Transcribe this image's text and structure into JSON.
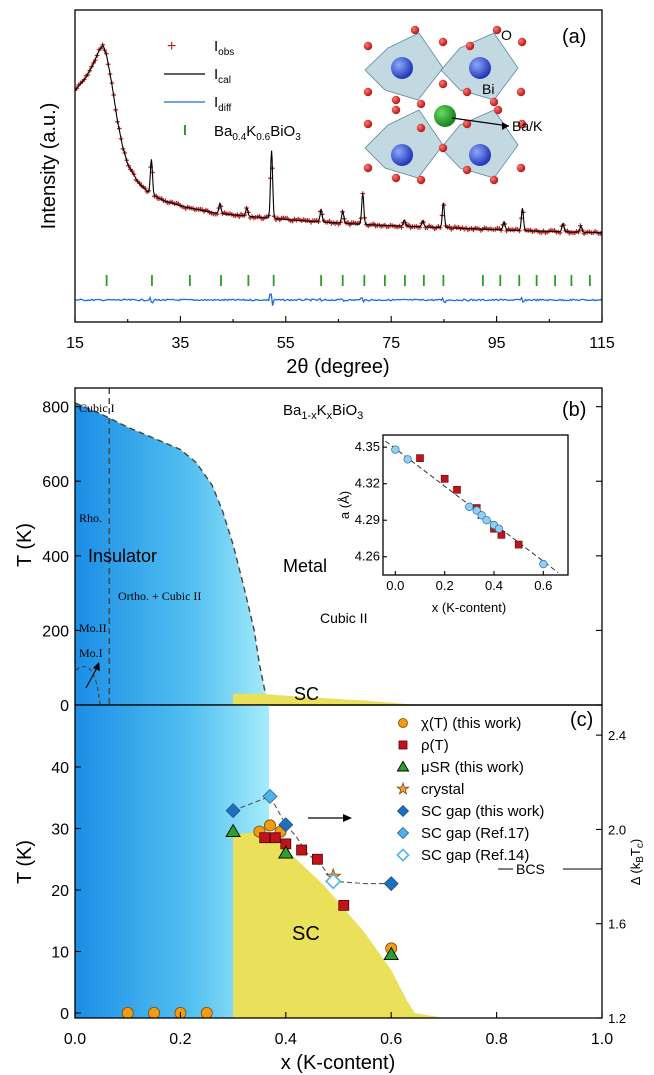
{
  "chart_data": [
    {
      "id": "a",
      "type": "scatter",
      "panel_label": "(a)",
      "xlabel": "2θ (degree)",
      "ylabel": "Intensity (a.u.)",
      "xlim": [
        15,
        115
      ],
      "x_ticks": [
        "15",
        "35",
        "55",
        "75",
        "95",
        "115"
      ],
      "legend": [
        "Iobs",
        "Ical",
        "Idiff",
        "Ba0.4K0.6BiO3"
      ],
      "legend_parts": [
        {
          "main": "I",
          "sub": "obs",
          "tail": ""
        },
        {
          "main": "I",
          "sub": "cal",
          "tail": ""
        },
        {
          "main": "I",
          "sub": "diff",
          "tail": ""
        },
        {
          "main": "Ba",
          "sub": "0.4",
          "mid": "K",
          "sub2": "0.6",
          "tail": "BiO",
          "sub3": "3"
        }
      ],
      "colors": {
        "obs": "#b22222",
        "cal": "#000000",
        "diff": "#1f6fd6",
        "bragg": "#2a9d2a"
      },
      "intensity_profile": [
        [
          15,
          0.74
        ],
        [
          17,
          0.8
        ],
        [
          18.5,
          0.87
        ],
        [
          19.5,
          0.93
        ],
        [
          20.3,
          0.96
        ],
        [
          21,
          0.91
        ],
        [
          22,
          0.77
        ],
        [
          23,
          0.6
        ],
        [
          24,
          0.47
        ],
        [
          25,
          0.38
        ],
        [
          27,
          0.29
        ],
        [
          29,
          0.24
        ],
        [
          32,
          0.2
        ],
        [
          36,
          0.17
        ],
        [
          42,
          0.14
        ],
        [
          50,
          0.12
        ],
        [
          60,
          0.1
        ],
        [
          70,
          0.085
        ],
        [
          80,
          0.075
        ],
        [
          90,
          0.065
        ],
        [
          100,
          0.055
        ],
        [
          115,
          0.045
        ]
      ],
      "peaks": [
        [
          29.5,
          0.17
        ],
        [
          42.5,
          0.05
        ],
        [
          47.6,
          0.04
        ],
        [
          52.3,
          0.33
        ],
        [
          61.7,
          0.06
        ],
        [
          65.8,
          0.06
        ],
        [
          69.6,
          0.15
        ],
        [
          77.5,
          0.03
        ],
        [
          81.0,
          0.03
        ],
        [
          84.9,
          0.12
        ],
        [
          96.4,
          0.04
        ],
        [
          99.9,
          0.11
        ],
        [
          107.6,
          0.04
        ],
        [
          111.0,
          0.03
        ]
      ],
      "bragg_positions": [
        21.0,
        29.6,
        36.8,
        42.7,
        47.9,
        52.7,
        61.7,
        65.8,
        69.9,
        73.8,
        77.6,
        81.2,
        84.9,
        92.4,
        95.7,
        99.3,
        102.6,
        106.1,
        109.2,
        112.7
      ],
      "inset_labels": {
        "O": "O",
        "Bi": "Bi",
        "A": "Ba/K"
      }
    },
    {
      "id": "b",
      "type": "area",
      "panel_label": "(b)",
      "title": "Ba1-xKxBiO3",
      "title_parts": {
        "a": "Ba",
        "b": "1-x",
        "c": "K",
        "d": "x",
        "e": "BiO",
        "f": "3"
      },
      "ylabel": "T (K)",
      "ylim": [
        0,
        850
      ],
      "y_ticks": [
        "0",
        "200",
        "400",
        "600",
        "800"
      ],
      "phase_boundary": [
        [
          0,
          810
        ],
        [
          0.05,
          780
        ],
        [
          0.1,
          745
        ],
        [
          0.15,
          715
        ],
        [
          0.2,
          685
        ],
        [
          0.23,
          650
        ],
        [
          0.26,
          590
        ],
        [
          0.28,
          520
        ],
        [
          0.3,
          430
        ],
        [
          0.32,
          320
        ],
        [
          0.34,
          200
        ],
        [
          0.35,
          110
        ],
        [
          0.36,
          40
        ],
        [
          0.37,
          0
        ]
      ],
      "sc_dome": [
        [
          0.3,
          30
        ],
        [
          0.35,
          30
        ],
        [
          0.45,
          20
        ],
        [
          0.55,
          12
        ],
        [
          0.65,
          0
        ]
      ],
      "cubic_line_x": 0.065,
      "region_labels": {
        "cubic1": "Cubic I",
        "rho": "Rho.",
        "insulator": "Insulator",
        "metal": "Metal",
        "ortho": "Ortho. + Cubic II",
        "mo2": "Mo.II",
        "mo1": "Mo.I",
        "cubic2": "Cubic II",
        "sc": "SC"
      },
      "inset": {
        "type": "scatter",
        "xlabel": "x (K-content)",
        "ylabel": "a (Å)",
        "xlim": [
          -0.05,
          0.7
        ],
        "ylim": [
          4.245,
          4.36
        ],
        "x_ticks": [
          "0.0",
          "0.2",
          "0.4",
          "0.6"
        ],
        "y_ticks": [
          "4.26",
          "4.29",
          "4.32",
          "4.35"
        ],
        "circles": [
          [
            0.0,
            4.348
          ],
          [
            0.05,
            4.34
          ],
          [
            0.3,
            4.301
          ],
          [
            0.33,
            4.298
          ],
          [
            0.35,
            4.294
          ],
          [
            0.37,
            4.29
          ],
          [
            0.4,
            4.286
          ],
          [
            0.42,
            4.283
          ],
          [
            0.6,
            4.254
          ]
        ],
        "squares": [
          [
            0.1,
            4.341
          ],
          [
            0.2,
            4.324
          ],
          [
            0.25,
            4.315
          ],
          [
            0.33,
            4.3
          ],
          [
            0.4,
            4.283
          ],
          [
            0.43,
            4.278
          ],
          [
            0.5,
            4.27
          ]
        ],
        "triangles": [
          [
            0.35,
            4.294
          ]
        ],
        "fit": [
          [
            0.0,
            4.349
          ],
          [
            0.6,
            4.256
          ]
        ]
      }
    },
    {
      "id": "c",
      "type": "scatter",
      "panel_label": "(c)",
      "xlabel": "x (K-content)",
      "ylabel": "T (K)",
      "y2label": "Δ (kBTc)",
      "y2_parts": {
        "a": "Δ (k",
        "b": "B",
        "c": "T",
        "d": "c",
        "e": ")"
      },
      "xlim": [
        0,
        1.0
      ],
      "ylim": [
        -1,
        50
      ],
      "y2lim": [
        1.2,
        2.6
      ],
      "x_ticks": [
        "0.0",
        "0.2",
        "0.4",
        "0.6",
        "0.8",
        "1.0"
      ],
      "y_ticks": [
        "0",
        "10",
        "20",
        "30",
        "40"
      ],
      "y2_ticks": [
        "1.2",
        "1.6",
        "2.0",
        "2.4"
      ],
      "bcs_label": "BCS",
      "bcs_value": 1.76,
      "sc_label": "SC",
      "sc_region": [
        [
          0.3,
          0
        ],
        [
          0.3,
          29
        ],
        [
          0.35,
          29.5
        ],
        [
          0.38,
          28
        ],
        [
          0.42,
          25
        ],
        [
          0.47,
          21
        ],
        [
          0.5,
          18
        ],
        [
          0.55,
          13
        ],
        [
          0.6,
          7
        ],
        [
          0.63,
          2
        ],
        [
          0.645,
          0
        ]
      ],
      "series": [
        {
          "name": "χ(T) (this work)",
          "marker": "circle",
          "color": "#f39c12",
          "points": [
            [
              0.1,
              0
            ],
            [
              0.15,
              0
            ],
            [
              0.2,
              0
            ],
            [
              0.25,
              0
            ],
            [
              0.35,
              29.5
            ],
            [
              0.37,
              30.5
            ],
            [
              0.39,
              29.5
            ],
            [
              0.6,
              10.5
            ]
          ]
        },
        {
          "name": "ρ(T)",
          "marker": "square",
          "color": "#c0141c",
          "points": [
            [
              0.36,
              28.5
            ],
            [
              0.38,
              28.5
            ],
            [
              0.4,
              27.5
            ],
            [
              0.43,
              26.5
            ],
            [
              0.46,
              25
            ],
            [
              0.51,
              17.5
            ]
          ]
        },
        {
          "name": "μSR (this work)",
          "marker": "triangle",
          "color": "#2ca02c",
          "points": [
            [
              0.3,
              29.5
            ],
            [
              0.4,
              26
            ],
            [
              0.6,
              9.5
            ]
          ]
        },
        {
          "name": "crystal",
          "marker": "star",
          "color": "#f0a050",
          "points": [
            [
              0.49,
              22.2
            ]
          ]
        },
        {
          "name": "SC gap (this work)",
          "marker": "diamond",
          "color": "#1f6fc0",
          "points": [
            [
              0.3,
              2.08
            ],
            [
              0.4,
              2.02
            ],
            [
              0.6,
              1.77
            ]
          ]
        },
        {
          "name": "SC gap (Ref.17)",
          "marker": "diamond",
          "color": "#4fb3ea",
          "points": [
            [
              0.37,
              2.14
            ]
          ]
        },
        {
          "name": "SC gap (Ref.14)",
          "marker": "diamond-open",
          "color": "#4fb3ea",
          "points": [
            [
              0.49,
              1.78
            ]
          ]
        }
      ],
      "gap_path": [
        [
          0.3,
          2.08
        ],
        [
          0.37,
          2.14
        ],
        [
          0.4,
          2.02
        ],
        [
          0.42,
          1.97
        ],
        [
          0.44,
          1.9
        ],
        [
          0.47,
          1.84
        ],
        [
          0.49,
          1.78
        ],
        [
          0.55,
          1.77
        ],
        [
          0.6,
          1.77
        ]
      ]
    }
  ]
}
